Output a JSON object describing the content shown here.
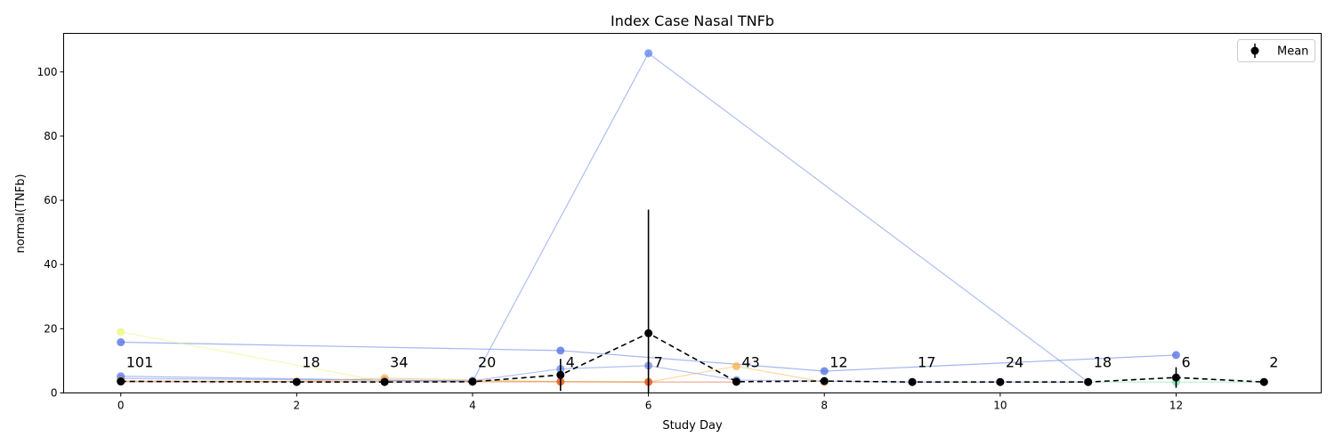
{
  "chart_data": {
    "type": "line",
    "title": "Index Case Nasal TNFb",
    "xlabel": "Study Day",
    "ylabel": "normal(TNFb)",
    "xlim": [
      -0.65,
      13.65
    ],
    "ylim": [
      0,
      112
    ],
    "xticks": [
      0,
      2,
      4,
      6,
      8,
      10,
      12
    ],
    "yticks": [
      0,
      20,
      40,
      60,
      80,
      100
    ],
    "grid": false,
    "legend": {
      "position": "upper right",
      "entries": [
        {
          "label": "Mean"
        }
      ]
    },
    "subjects": [
      {
        "color": "#4d6be0",
        "points": [
          [
            0,
            15.8
          ],
          [
            5,
            13.2
          ],
          [
            8,
            6.8
          ],
          [
            12,
            11.8
          ]
        ]
      },
      {
        "color": "#5b7fe8",
        "points": [
          [
            0,
            5.2
          ],
          [
            3,
            4.0
          ],
          [
            4,
            3.6
          ],
          [
            6,
            105.8
          ],
          [
            11,
            3.4
          ]
        ]
      },
      {
        "color": "#6a86e6",
        "points": [
          [
            0,
            4.5
          ],
          [
            4,
            3.8
          ],
          [
            5,
            7.5
          ],
          [
            6,
            8.5
          ],
          [
            7,
            4.0
          ],
          [
            9,
            3.4
          ],
          [
            10,
            3.4
          ],
          [
            11,
            3.4
          ]
        ]
      },
      {
        "color": "#e8f57a",
        "points": [
          [
            0,
            19.0
          ],
          [
            3,
            3.5
          ],
          [
            6,
            3.5
          ]
        ]
      },
      {
        "color": "#f7b24a",
        "points": [
          [
            0,
            3.8
          ],
          [
            2,
            3.6
          ],
          [
            3,
            4.6
          ],
          [
            5,
            3.5
          ],
          [
            6,
            3.4
          ],
          [
            7,
            8.3
          ],
          [
            8,
            3.4
          ]
        ]
      },
      {
        "color": "#e2572c",
        "points": [
          [
            0,
            3.5
          ],
          [
            3,
            3.5
          ],
          [
            4,
            3.5
          ],
          [
            5,
            3.5
          ],
          [
            6,
            3.4
          ],
          [
            7,
            3.4
          ]
        ]
      },
      {
        "color": "#7fe3a8",
        "points": [
          [
            11,
            3.4
          ],
          [
            12,
            3.4
          ],
          [
            13,
            3.4
          ]
        ]
      }
    ],
    "mean": {
      "label": "Mean",
      "color": "#000000",
      "x": [
        0,
        2,
        3,
        4,
        5,
        6,
        7,
        8,
        9,
        10,
        11,
        12,
        13
      ],
      "y": [
        3.6,
        3.4,
        3.4,
        3.5,
        5.6,
        18.6,
        3.5,
        3.7,
        3.4,
        3.4,
        3.4,
        4.8,
        3.4
      ],
      "err": [
        0.9,
        0.1,
        0.3,
        0.2,
        5.0,
        38.5,
        0.2,
        0.8,
        0.05,
        0.05,
        0.05,
        3.2,
        0.05
      ]
    },
    "counts": [
      {
        "x": 0,
        "label": "101"
      },
      {
        "x": 2,
        "label": "18"
      },
      {
        "x": 3,
        "label": "34"
      },
      {
        "x": 4,
        "label": "20"
      },
      {
        "x": 5,
        "label": "4"
      },
      {
        "x": 6,
        "label": "7"
      },
      {
        "x": 7,
        "label": "43"
      },
      {
        "x": 8,
        "label": "12"
      },
      {
        "x": 9,
        "label": "17"
      },
      {
        "x": 10,
        "label": "24"
      },
      {
        "x": 11,
        "label": "18"
      },
      {
        "x": 12,
        "label": "6"
      },
      {
        "x": 13,
        "label": "2"
      }
    ],
    "count_label_y": 8
  }
}
